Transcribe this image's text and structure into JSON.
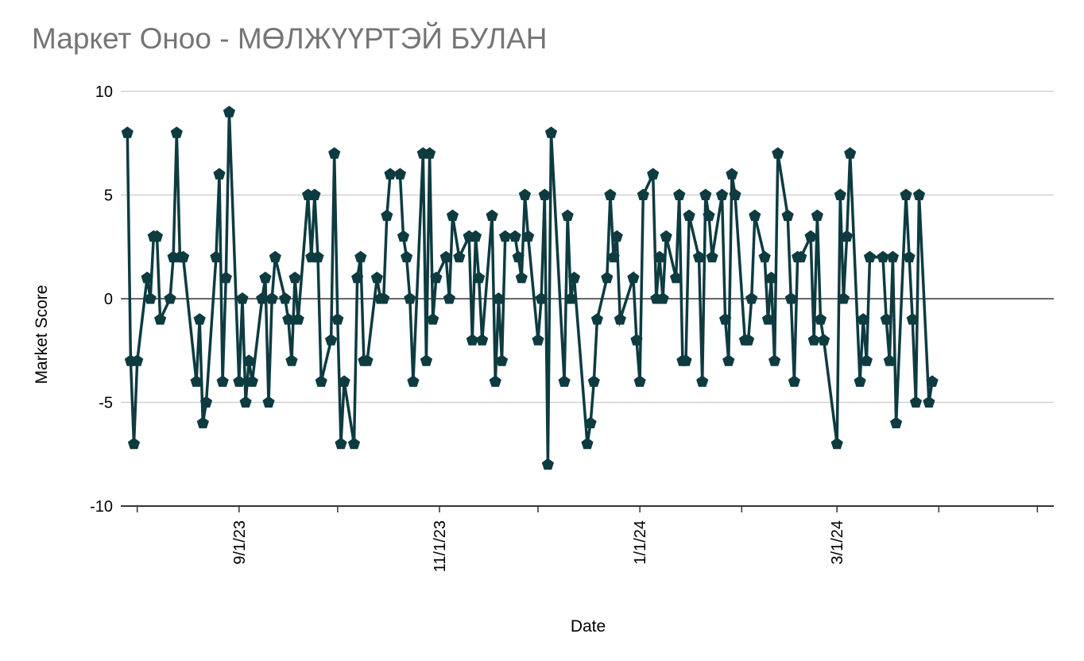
{
  "chart_data": {
    "type": "line",
    "title": "Маркет Оноо - МӨЛЖҮҮРТЭЙ БУЛАН",
    "xlabel": "Date",
    "ylabel": "Market Score",
    "ylim": [
      -10,
      10
    ],
    "yticks": [
      "10",
      "5",
      "0",
      "-5",
      "-10"
    ],
    "xlim": [
      "2023-07-27",
      "2024-05-06"
    ],
    "xticks": [
      {
        "label": "9/1/23",
        "date": "2023-09-01"
      },
      {
        "label": "11/1/23",
        "date": "2023-11-01"
      },
      {
        "label": "1/1/24",
        "date": "2024-01-01"
      },
      {
        "label": "3/1/24",
        "date": "2024-03-01"
      }
    ],
    "grid": true,
    "legend": "none",
    "series": [
      {
        "color": "#0d3b40",
        "marker": "pentagon",
        "points": [
          [
            "2023-07-29",
            8
          ],
          [
            "2023-07-30",
            -3
          ],
          [
            "2023-07-31",
            -7
          ],
          [
            "2023-08-01",
            -3
          ],
          [
            "2023-08-04",
            1
          ],
          [
            "2023-08-05",
            0
          ],
          [
            "2023-08-06",
            3
          ],
          [
            "2023-08-07",
            3
          ],
          [
            "2023-08-08",
            -1
          ],
          [
            "2023-08-11",
            0
          ],
          [
            "2023-08-12",
            2
          ],
          [
            "2023-08-13",
            8
          ],
          [
            "2023-08-14",
            2
          ],
          [
            "2023-08-15",
            2
          ],
          [
            "2023-08-19",
            -4
          ],
          [
            "2023-08-20",
            -1
          ],
          [
            "2023-08-21",
            -6
          ],
          [
            "2023-08-22",
            -5
          ],
          [
            "2023-08-25",
            2
          ],
          [
            "2023-08-26",
            6
          ],
          [
            "2023-08-27",
            -4
          ],
          [
            "2023-08-28",
            1
          ],
          [
            "2023-08-29",
            9
          ],
          [
            "2023-09-01",
            -4
          ],
          [
            "2023-09-02",
            0
          ],
          [
            "2023-09-03",
            -5
          ],
          [
            "2023-09-04",
            -3
          ],
          [
            "2023-09-05",
            -4
          ],
          [
            "2023-09-08",
            0
          ],
          [
            "2023-09-09",
            1
          ],
          [
            "2023-09-10",
            -5
          ],
          [
            "2023-09-11",
            0
          ],
          [
            "2023-09-12",
            2
          ],
          [
            "2023-09-15",
            0
          ],
          [
            "2023-09-16",
            -1
          ],
          [
            "2023-09-17",
            -3
          ],
          [
            "2023-09-18",
            1
          ],
          [
            "2023-09-19",
            -1
          ],
          [
            "2023-09-22",
            5
          ],
          [
            "2023-09-23",
            2
          ],
          [
            "2023-09-24",
            5
          ],
          [
            "2023-09-25",
            2
          ],
          [
            "2023-09-26",
            -4
          ],
          [
            "2023-09-29",
            -2
          ],
          [
            "2023-09-30",
            7
          ],
          [
            "2023-10-01",
            -1
          ],
          [
            "2023-10-02",
            -7
          ],
          [
            "2023-10-03",
            -4
          ],
          [
            "2023-10-06",
            -7
          ],
          [
            "2023-10-07",
            1
          ],
          [
            "2023-10-08",
            2
          ],
          [
            "2023-10-09",
            -3
          ],
          [
            "2023-10-10",
            -3
          ],
          [
            "2023-10-13",
            1
          ],
          [
            "2023-10-14",
            0
          ],
          [
            "2023-10-15",
            0
          ],
          [
            "2023-10-16",
            4
          ],
          [
            "2023-10-17",
            6
          ],
          [
            "2023-10-20",
            6
          ],
          [
            "2023-10-21",
            3
          ],
          [
            "2023-10-22",
            2
          ],
          [
            "2023-10-23",
            0
          ],
          [
            "2023-10-24",
            -4
          ],
          [
            "2023-10-27",
            7
          ],
          [
            "2023-10-28",
            -3
          ],
          [
            "2023-10-29",
            7
          ],
          [
            "2023-10-30",
            -1
          ],
          [
            "2023-10-31",
            1
          ],
          [
            "2023-11-03",
            2
          ],
          [
            "2023-11-04",
            0
          ],
          [
            "2023-11-05",
            4
          ],
          [
            "2023-11-07",
            2
          ],
          [
            "2023-11-10",
            3
          ],
          [
            "2023-11-11",
            -2
          ],
          [
            "2023-11-12",
            3
          ],
          [
            "2023-11-13",
            1
          ],
          [
            "2023-11-14",
            -2
          ],
          [
            "2023-11-17",
            4
          ],
          [
            "2023-11-18",
            -4
          ],
          [
            "2023-11-19",
            0
          ],
          [
            "2023-11-20",
            -3
          ],
          [
            "2023-11-21",
            3
          ],
          [
            "2023-11-24",
            3
          ],
          [
            "2023-11-25",
            2
          ],
          [
            "2023-11-26",
            1
          ],
          [
            "2023-11-27",
            5
          ],
          [
            "2023-11-28",
            3
          ],
          [
            "2023-12-01",
            -2
          ],
          [
            "2023-12-02",
            0
          ],
          [
            "2023-12-03",
            5
          ],
          [
            "2023-12-04",
            -8
          ],
          [
            "2023-12-05",
            8
          ],
          [
            "2023-12-09",
            -4
          ],
          [
            "2023-12-10",
            4
          ],
          [
            "2023-12-11",
            0
          ],
          [
            "2023-12-12",
            1
          ],
          [
            "2023-12-16",
            -7
          ],
          [
            "2023-12-17",
            -6
          ],
          [
            "2023-12-18",
            -4
          ],
          [
            "2023-12-19",
            -1
          ],
          [
            "2023-12-22",
            1
          ],
          [
            "2023-12-23",
            5
          ],
          [
            "2023-12-24",
            2
          ],
          [
            "2023-12-25",
            3
          ],
          [
            "2023-12-26",
            -1
          ],
          [
            "2023-12-30",
            1
          ],
          [
            "2023-12-31",
            -2
          ],
          [
            "2024-01-01",
            -4
          ],
          [
            "2024-01-02",
            5
          ],
          [
            "2024-01-05",
            6
          ],
          [
            "2024-01-06",
            0
          ],
          [
            "2024-01-07",
            2
          ],
          [
            "2024-01-08",
            0
          ],
          [
            "2024-01-09",
            3
          ],
          [
            "2024-01-12",
            1
          ],
          [
            "2024-01-13",
            5
          ],
          [
            "2024-01-14",
            -3
          ],
          [
            "2024-01-15",
            -3
          ],
          [
            "2024-01-16",
            4
          ],
          [
            "2024-01-19",
            2
          ],
          [
            "2024-01-20",
            -4
          ],
          [
            "2024-01-21",
            5
          ],
          [
            "2024-01-22",
            4
          ],
          [
            "2024-01-23",
            2
          ],
          [
            "2024-01-26",
            5
          ],
          [
            "2024-01-27",
            -1
          ],
          [
            "2024-01-28",
            -3
          ],
          [
            "2024-01-29",
            6
          ],
          [
            "2024-01-30",
            5
          ],
          [
            "2024-02-02",
            -2
          ],
          [
            "2024-02-03",
            -2
          ],
          [
            "2024-02-04",
            0
          ],
          [
            "2024-02-05",
            4
          ],
          [
            "2024-02-08",
            2
          ],
          [
            "2024-02-09",
            -1
          ],
          [
            "2024-02-10",
            1
          ],
          [
            "2024-02-11",
            -3
          ],
          [
            "2024-02-12",
            7
          ],
          [
            "2024-02-15",
            4
          ],
          [
            "2024-02-16",
            0
          ],
          [
            "2024-02-17",
            -4
          ],
          [
            "2024-02-18",
            2
          ],
          [
            "2024-02-19",
            2
          ],
          [
            "2024-02-22",
            3
          ],
          [
            "2024-02-23",
            -2
          ],
          [
            "2024-02-24",
            4
          ],
          [
            "2024-02-25",
            -1
          ],
          [
            "2024-02-26",
            -2
          ],
          [
            "2024-03-01",
            -7
          ],
          [
            "2024-03-02",
            5
          ],
          [
            "2024-03-03",
            0
          ],
          [
            "2024-03-04",
            3
          ],
          [
            "2024-03-05",
            7
          ],
          [
            "2024-03-08",
            -4
          ],
          [
            "2024-03-09",
            -1
          ],
          [
            "2024-03-10",
            -3
          ],
          [
            "2024-03-11",
            2
          ],
          [
            "2024-03-15",
            2
          ],
          [
            "2024-03-16",
            -1
          ],
          [
            "2024-03-17",
            -3
          ],
          [
            "2024-03-18",
            2
          ],
          [
            "2024-03-19",
            -6
          ],
          [
            "2024-03-22",
            5
          ],
          [
            "2024-03-23",
            2
          ],
          [
            "2024-03-24",
            -1
          ],
          [
            "2024-03-25",
            -5
          ],
          [
            "2024-03-26",
            5
          ],
          [
            "2024-03-29",
            -5
          ],
          [
            "2024-03-30",
            -4
          ]
        ]
      }
    ]
  }
}
